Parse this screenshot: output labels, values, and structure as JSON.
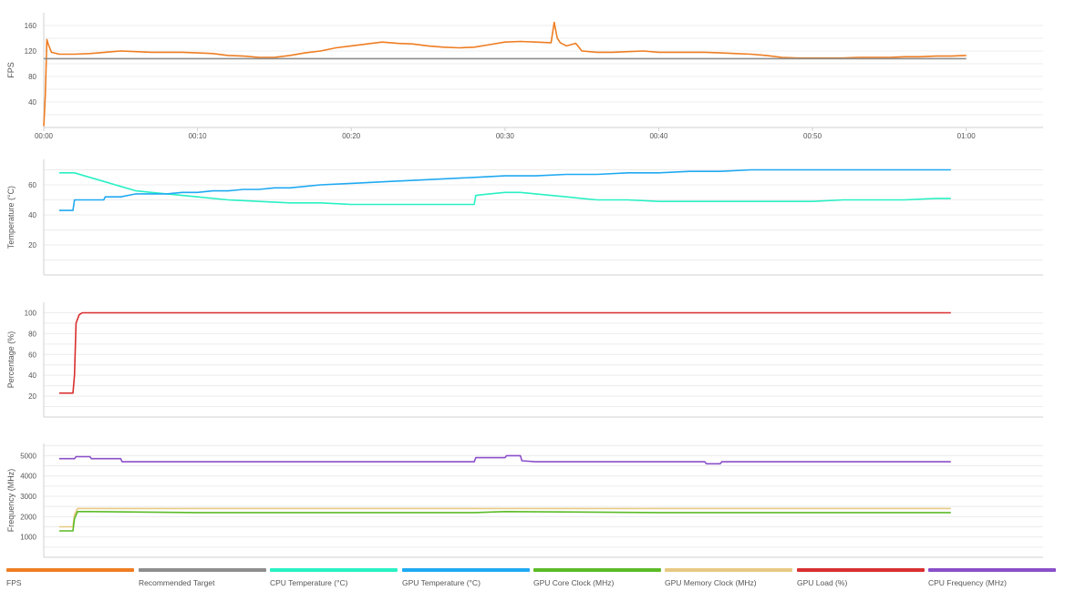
{
  "colors": {
    "fps": "#ee7d22",
    "target": "#8e8e8e",
    "cpu_temp": "#2af0c4",
    "gpu_temp": "#20a9f2",
    "gpu_core": "#5cbb27",
    "gpu_mem": "#e7c982",
    "gpu_load": "#d92f2f",
    "cpu_freq": "#8b4fc9",
    "grid": "#ececec",
    "axis": "#d0d0d0"
  },
  "legend": [
    {
      "key": "fps",
      "label": "FPS"
    },
    {
      "key": "target",
      "label": "Recommended Target"
    },
    {
      "key": "cpu_temp",
      "label": "CPU Temperature (°C)"
    },
    {
      "key": "gpu_temp",
      "label": "GPU Temperature (°C)"
    },
    {
      "key": "gpu_core",
      "label": "GPU Core Clock (MHz)"
    },
    {
      "key": "gpu_mem",
      "label": "GPU Memory Clock (MHz)"
    },
    {
      "key": "gpu_load",
      "label": "GPU Load (%)"
    },
    {
      "key": "cpu_freq",
      "label": "CPU Frequency (MHz)"
    }
  ],
  "chart_data": [
    {
      "type": "line",
      "ylabel": "FPS",
      "ylim": [
        0,
        180
      ],
      "yticks": [
        40,
        80,
        120,
        160
      ],
      "xlim": [
        0,
        65
      ],
      "xticks": [
        0,
        10,
        20,
        30,
        40,
        50,
        60
      ],
      "xtick_labels": [
        "00:00",
        "00:10",
        "00:20",
        "00:30",
        "00:40",
        "00:50",
        "01:00"
      ],
      "grid": true,
      "series": [
        {
          "name": "FPS",
          "color_key": "fps",
          "x": [
            0,
            0.1,
            0.2,
            0.3,
            0.5,
            1,
            2,
            3,
            4,
            5,
            6,
            7,
            8,
            9,
            10,
            11,
            12,
            13,
            14,
            15,
            16,
            17,
            18,
            19,
            20,
            21,
            22,
            23,
            24,
            25,
            26,
            27,
            28,
            29,
            30,
            31,
            32,
            33,
            33.2,
            33.4,
            33.6,
            34,
            34.6,
            34.8,
            35,
            36,
            37,
            38,
            39,
            40,
            41,
            42,
            43,
            44,
            45,
            46,
            47,
            48,
            49,
            50,
            51,
            52,
            53,
            54,
            55,
            56,
            57,
            58,
            59,
            60
          ],
          "y": [
            2,
            50,
            138,
            130,
            118,
            115,
            115,
            116,
            118,
            120,
            119,
            118,
            118,
            118,
            117,
            116,
            113,
            112,
            110,
            110,
            113,
            117,
            120,
            125,
            128,
            131,
            134,
            132,
            131,
            128,
            126,
            125,
            126,
            130,
            134,
            135,
            134,
            133,
            165,
            140,
            133,
            128,
            132,
            126,
            120,
            118,
            118,
            119,
            120,
            118,
            118,
            118,
            118,
            117,
            116,
            115,
            113,
            110,
            109,
            109,
            109,
            109,
            110,
            110,
            110,
            111,
            111,
            112,
            112,
            113
          ]
        },
        {
          "name": "Recommended Target",
          "color_key": "target",
          "x": [
            0,
            60
          ],
          "y": [
            108,
            108
          ]
        }
      ]
    },
    {
      "type": "line",
      "ylabel": "Temperature (°C)",
      "ylim": [
        0,
        77
      ],
      "yticks": [
        20,
        40,
        60
      ],
      "xlim": [
        0,
        65
      ],
      "grid": true,
      "series": [
        {
          "name": "CPU Temperature (°C)",
          "color_key": "cpu_temp",
          "x": [
            1,
            2,
            3,
            4,
            5,
            6,
            7,
            8,
            9,
            10,
            12,
            14,
            16,
            18,
            20,
            22,
            24,
            26,
            28,
            28.1,
            29,
            30,
            31,
            32,
            33,
            34,
            35,
            36,
            38,
            40,
            42,
            44,
            46,
            48,
            50,
            52,
            54,
            56,
            58,
            59
          ],
          "y": [
            68,
            68,
            65,
            62,
            59,
            56,
            55,
            54,
            53,
            52,
            50,
            49,
            48,
            48,
            47,
            47,
            47,
            47,
            47,
            53,
            54,
            55,
            55,
            54,
            53,
            52,
            51,
            50,
            50,
            49,
            49,
            49,
            49,
            49,
            49,
            50,
            50,
            50,
            51,
            51
          ]
        },
        {
          "name": "GPU Temperature (°C)",
          "color_key": "gpu_temp",
          "x": [
            1,
            1.9,
            2,
            3.9,
            4,
            5,
            6,
            7,
            8,
            9,
            10,
            11,
            12,
            13,
            14,
            15,
            16,
            17,
            18,
            20,
            22,
            24,
            26,
            28,
            30,
            32,
            34,
            36,
            38,
            40,
            42,
            44,
            46,
            48,
            50,
            52,
            54,
            56,
            58,
            59
          ],
          "y": [
            43,
            43,
            50,
            50,
            52,
            52,
            54,
            54,
            54,
            55,
            55,
            56,
            56,
            57,
            57,
            58,
            58,
            59,
            60,
            61,
            62,
            63,
            64,
            65,
            66,
            66,
            67,
            67,
            68,
            68,
            69,
            69,
            70,
            70,
            70,
            70,
            70,
            70,
            70,
            70
          ]
        }
      ]
    },
    {
      "type": "line",
      "ylabel": "Percentage (%)",
      "ylim": [
        0,
        110
      ],
      "yticks": [
        20,
        40,
        60,
        80,
        100
      ],
      "xlim": [
        0,
        65
      ],
      "grid": true,
      "series": [
        {
          "name": "GPU Load (%)",
          "color_key": "gpu_load",
          "x": [
            1,
            1.9,
            2,
            2.1,
            2.3,
            2.5,
            59
          ],
          "y": [
            23,
            23,
            40,
            90,
            98,
            100,
            100
          ]
        }
      ]
    },
    {
      "type": "line",
      "ylabel": "Frequency (MHz)",
      "ylim": [
        0,
        5600
      ],
      "yticks": [
        1000,
        2000,
        3000,
        4000,
        5000
      ],
      "xlim": [
        0,
        65
      ],
      "grid": true,
      "series": [
        {
          "name": "CPU Frequency (MHz)",
          "color_key": "cpu_freq",
          "x": [
            1,
            2,
            2.1,
            3,
            3.1,
            4,
            4.1,
            5,
            5.1,
            28,
            28.1,
            29,
            29.1,
            30,
            30.1,
            31,
            31.1,
            32,
            43,
            43.1,
            44,
            44.1,
            59
          ],
          "y": [
            4850,
            4850,
            4950,
            4950,
            4850,
            4850,
            4850,
            4850,
            4700,
            4700,
            4900,
            4900,
            4900,
            4900,
            5000,
            5000,
            4750,
            4700,
            4700,
            4600,
            4600,
            4700,
            4700
          ]
        },
        {
          "name": "GPU Memory Clock (MHz)",
          "color_key": "gpu_mem",
          "x": [
            1,
            1.9,
            2,
            2.2,
            59
          ],
          "y": [
            1500,
            1500,
            2100,
            2400,
            2400
          ]
        },
        {
          "name": "GPU Core Clock (MHz)",
          "color_key": "gpu_core",
          "x": [
            1,
            1.9,
            2,
            2.2,
            3,
            10,
            20,
            28,
            30,
            40,
            50,
            59
          ],
          "y": [
            1300,
            1300,
            1900,
            2250,
            2250,
            2200,
            2200,
            2200,
            2250,
            2200,
            2200,
            2200
          ]
        }
      ]
    }
  ]
}
